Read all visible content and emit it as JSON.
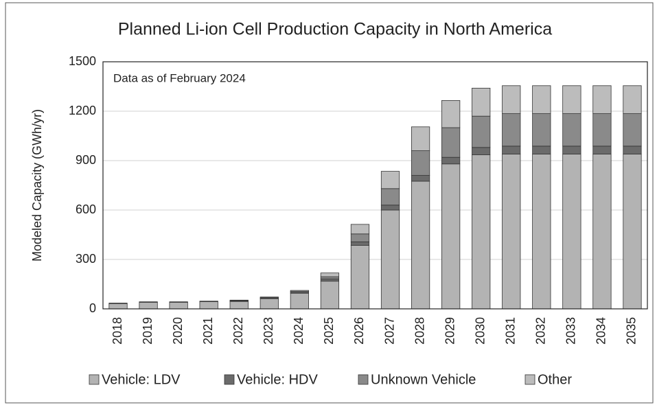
{
  "chart_data": {
    "type": "stacked_bar",
    "title": "Planned Li-ion Cell Production Capacity in North America",
    "annotation": "Data as of February 2024",
    "y_label": "Modeled Capacity (GWh/yr)",
    "categories": [
      "2018",
      "2019",
      "2020",
      "2021",
      "2022",
      "2023",
      "2024",
      "2025",
      "2026",
      "2027",
      "2028",
      "2029",
      "2030",
      "2031",
      "2032",
      "2033",
      "2034",
      "2035"
    ],
    "series": [
      {
        "name": "Vehicle: LDV",
        "color": "#b3b3b3",
        "values": [
          32,
          40,
          40,
          44,
          45,
          62,
          95,
          168,
          385,
          600,
          775,
          880,
          935,
          940,
          940,
          940,
          940,
          940
        ]
      },
      {
        "name": "Vehicle: HDV",
        "color": "#6b6b6b",
        "values": [
          0,
          0,
          0,
          0,
          3,
          3,
          5,
          14,
          22,
          30,
          35,
          40,
          45,
          48,
          48,
          48,
          48,
          48
        ]
      },
      {
        "name": "Unknown Vehicle",
        "color": "#8a8a8a",
        "values": [
          0,
          0,
          0,
          0,
          2,
          3,
          6,
          13,
          48,
          100,
          150,
          180,
          190,
          197,
          197,
          197,
          197,
          197
        ]
      },
      {
        "name": "Other",
        "color": "#bcbcbc",
        "values": [
          3,
          3,
          3,
          3,
          3,
          4,
          6,
          23,
          58,
          105,
          145,
          165,
          170,
          170,
          170,
          170,
          170,
          170
        ]
      }
    ],
    "ylim": [
      0,
      1500
    ],
    "yticks": [
      0,
      300,
      600,
      900,
      1200,
      1500
    ],
    "grid": true,
    "legend": "bottom"
  }
}
